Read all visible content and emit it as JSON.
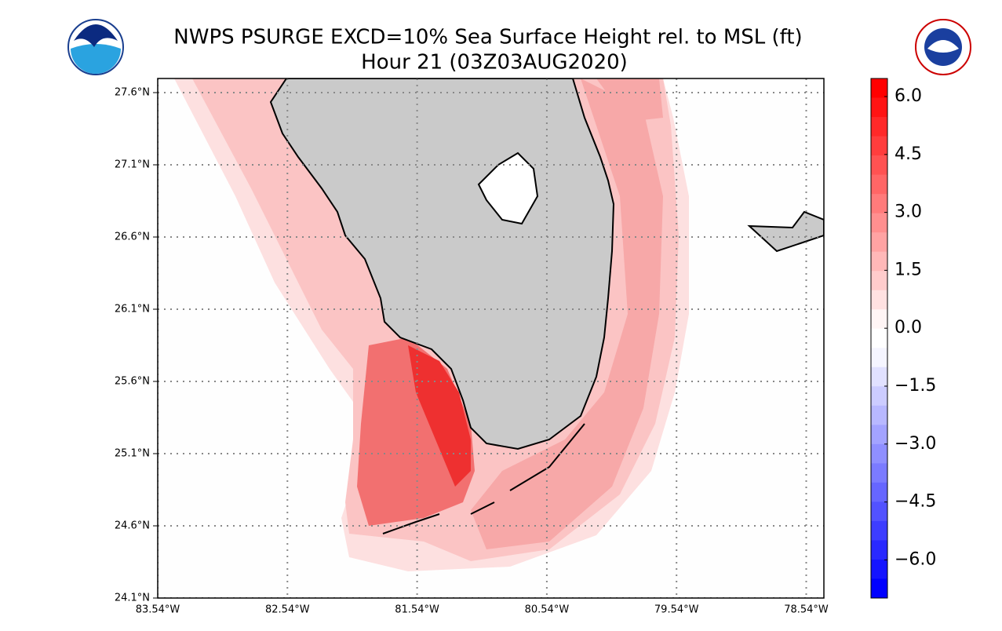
{
  "header": {
    "title_line1": "NWPS PSURGE EXCD=10% Sea Surface Height rel. to MSL (ft)",
    "title_line2": "Hour 21 (03Z03AUG2020)"
  },
  "map": {
    "lat_labels": [
      "27.6°N",
      "27.1°N",
      "26.6°N",
      "26.1°N",
      "25.6°N",
      "25.1°N",
      "24.6°N",
      "24.1°N"
    ],
    "lon_labels": [
      "83.54°W",
      "82.54°W",
      "81.54°W",
      "80.54°W",
      "79.54°W",
      "78.54°W"
    ]
  },
  "colorbar": {
    "labels": [
      "6.0",
      "4.5",
      "3.0",
      "1.5",
      "0.0",
      "−1.5",
      "−3.0",
      "−4.5",
      "−6.0"
    ]
  }
}
